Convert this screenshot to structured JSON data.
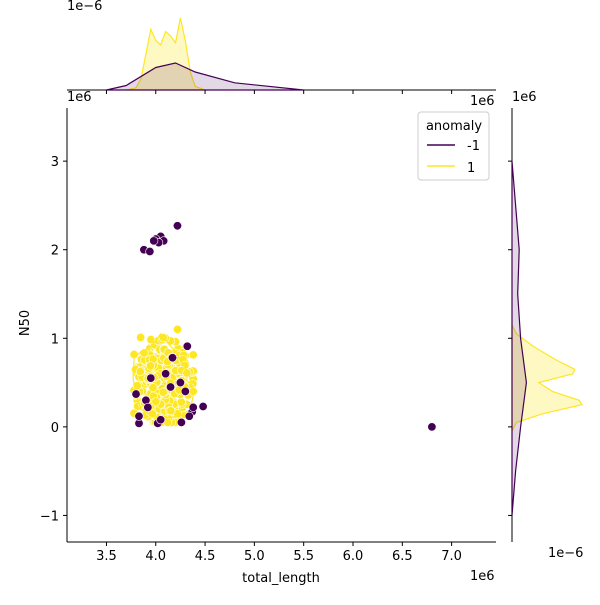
{
  "chart_data": {
    "type": "scatter",
    "xlabel": "total_length",
    "ylabel": "N50",
    "x_offset_text": "1e6",
    "y_offset_text": "1e6",
    "top_marginal_offset_text": "1e−6",
    "right_marginal_offset_text": "1e6",
    "right_marginal_x_offset_text": "1e−6",
    "xlim": [
      3.1,
      7.45
    ],
    "ylim": [
      -1.3,
      3.6
    ],
    "xticks": [
      3.5,
      4.0,
      4.5,
      5.0,
      5.5,
      6.0,
      6.5,
      7.0
    ],
    "xtick_labels": [
      "3.5",
      "4.0",
      "4.5",
      "5.0",
      "5.5",
      "6.0",
      "6.5",
      "7.0"
    ],
    "yticks": [
      -1,
      0,
      1,
      2,
      3
    ],
    "ytick_labels": [
      "−1",
      "0",
      "1",
      "2",
      "3"
    ],
    "legend": {
      "title": "anomaly",
      "placement": "top-right",
      "entries": [
        {
          "label": "-1",
          "color": "#440154"
        },
        {
          "label": "1",
          "color": "#fde725"
        }
      ]
    },
    "series": [
      {
        "name": "-1",
        "color": "#440154",
        "points": [
          [
            4.05,
            2.15
          ],
          [
            4.0,
            2.12
          ],
          [
            4.08,
            2.1
          ],
          [
            4.03,
            2.08
          ],
          [
            3.98,
            2.1
          ],
          [
            4.22,
            2.27
          ],
          [
            3.88,
            2.0
          ],
          [
            3.94,
            1.98
          ],
          [
            6.8,
            0.0
          ],
          [
            4.48,
            0.23
          ],
          [
            4.32,
            0.91
          ],
          [
            4.17,
            0.78
          ],
          [
            4.26,
            0.05
          ],
          [
            4.02,
            0.04
          ],
          [
            3.83,
            0.04
          ],
          [
            3.8,
            0.37
          ],
          [
            3.83,
            0.12
          ],
          [
            4.37,
            0.17
          ],
          [
            4.34,
            0.12
          ],
          [
            3.95,
            0.55
          ],
          [
            4.1,
            0.6
          ],
          [
            4.15,
            0.45
          ],
          [
            4.3,
            0.4
          ],
          [
            3.9,
            0.3
          ],
          [
            4.25,
            0.5
          ],
          [
            4.05,
            0.08
          ],
          [
            3.92,
            0.22
          ],
          [
            4.38,
            0.22
          ]
        ]
      },
      {
        "name": "1",
        "color": "#fde725",
        "cluster": {
          "x_center": 4.08,
          "x_spread": 0.28,
          "y_center": 0.48,
          "y_spread": 0.45,
          "count": 360
        }
      }
    ],
    "top_marginal": {
      "yellow_density": [
        [
          3.7,
          0.0
        ],
        [
          3.8,
          0.05
        ],
        [
          3.85,
          0.25
        ],
        [
          3.9,
          0.8
        ],
        [
          3.95,
          1.35
        ],
        [
          4.0,
          1.1
        ],
        [
          4.05,
          1.0
        ],
        [
          4.1,
          1.3
        ],
        [
          4.15,
          1.2
        ],
        [
          4.2,
          1.05
        ],
        [
          4.25,
          1.6
        ],
        [
          4.3,
          1.1
        ],
        [
          4.35,
          0.4
        ],
        [
          4.4,
          0.08
        ],
        [
          4.5,
          0.0
        ]
      ],
      "purple_density": [
        [
          3.5,
          0.0
        ],
        [
          3.7,
          0.005
        ],
        [
          4.0,
          0.025
        ],
        [
          4.2,
          0.03
        ],
        [
          4.4,
          0.02
        ],
        [
          4.8,
          0.008
        ],
        [
          5.5,
          0.0
        ]
      ]
    },
    "right_marginal": {
      "yellow_density": [
        [
          1.15,
          0.0
        ],
        [
          1.05,
          0.05
        ],
        [
          0.9,
          0.25
        ],
        [
          0.75,
          0.5
        ],
        [
          0.65,
          0.7
        ],
        [
          0.6,
          0.68
        ],
        [
          0.5,
          0.3
        ],
        [
          0.4,
          0.45
        ],
        [
          0.3,
          0.75
        ],
        [
          0.25,
          0.78
        ],
        [
          0.15,
          0.35
        ],
        [
          0.05,
          0.05
        ],
        [
          -0.05,
          0.0
        ]
      ],
      "purple_density": [
        [
          3.0,
          0.0
        ],
        [
          2.5,
          0.005
        ],
        [
          2.0,
          0.01
        ],
        [
          1.5,
          0.008
        ],
        [
          1.0,
          0.012
        ],
        [
          0.5,
          0.02
        ],
        [
          0.0,
          0.012
        ],
        [
          -0.5,
          0.005
        ],
        [
          -1.0,
          0.0
        ]
      ]
    }
  }
}
